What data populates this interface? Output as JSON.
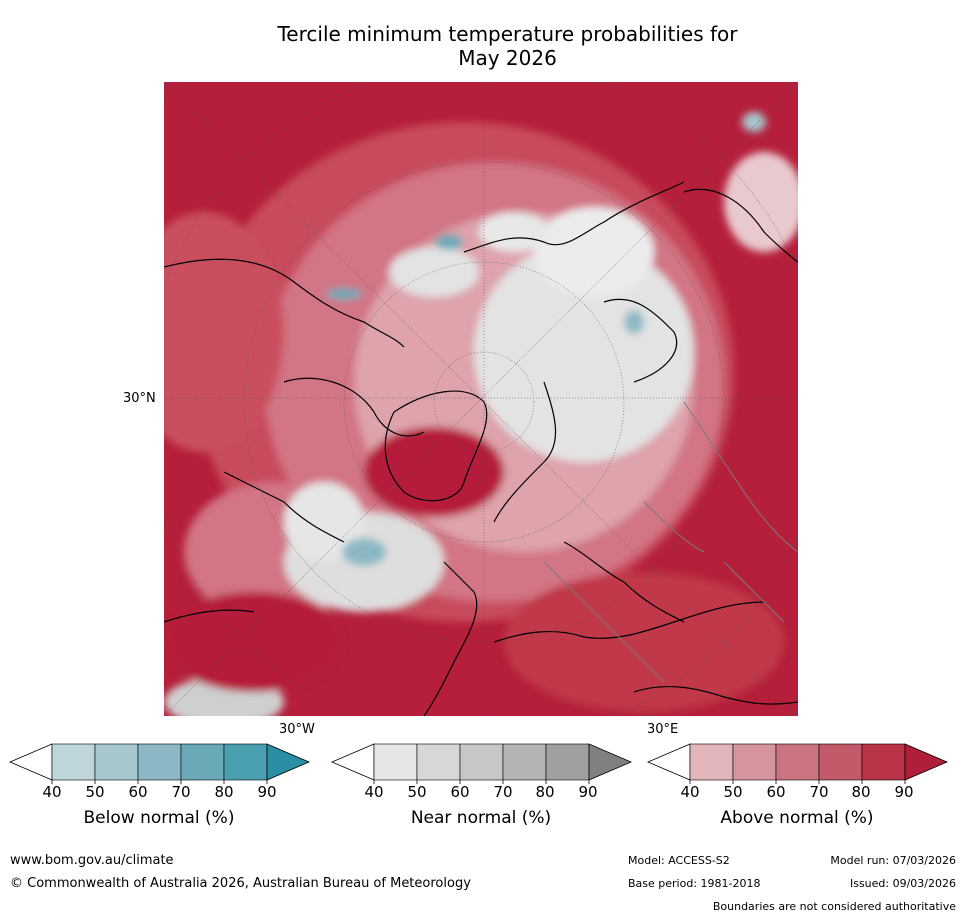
{
  "title": {
    "line1": "Tercile minimum temperature probabilities for",
    "line2": "May 2026"
  },
  "map": {
    "lat_label": "30°N",
    "lon_label_left": "30°W",
    "lon_label_right": "30°E"
  },
  "colorbars": [
    {
      "id": "below",
      "label": "Below normal (%)",
      "ticks": [
        "40",
        "50",
        "60",
        "70",
        "80",
        "90"
      ],
      "colors": [
        "#ffffff",
        "#bdd5db",
        "#a6c7ce",
        "#8bb8c4",
        "#6aa9b8",
        "#4aa0b0",
        "#2a8fa5"
      ]
    },
    {
      "id": "near",
      "label": "Near normal (%)",
      "ticks": [
        "40",
        "50",
        "60",
        "70",
        "80",
        "90"
      ],
      "colors": [
        "#ffffff",
        "#e6e6e6",
        "#d7d7d7",
        "#c7c7c7",
        "#b4b4b4",
        "#a0a0a0",
        "#808080"
      ]
    },
    {
      "id": "above",
      "label": "Above normal (%)",
      "ticks": [
        "40",
        "50",
        "60",
        "70",
        "80",
        "90"
      ],
      "colors": [
        "#ffffff",
        "#e2b5bb",
        "#d6949e",
        "#c97480",
        "#c25a69",
        "#b93449",
        "#b01e3a"
      ]
    }
  ],
  "footer": {
    "url": "www.bom.gov.au/climate",
    "copyright": "© Commonwealth of Australia 2026, Australian Bureau of Meteorology",
    "model": "Model: ACCESS-S2",
    "model_run": "Model run: 07/03/2026",
    "base_period": "Base period: 1981-2018",
    "issued": "Issued: 09/03/2026",
    "disclaimer": "Boundaries are not considered authoritative"
  }
}
